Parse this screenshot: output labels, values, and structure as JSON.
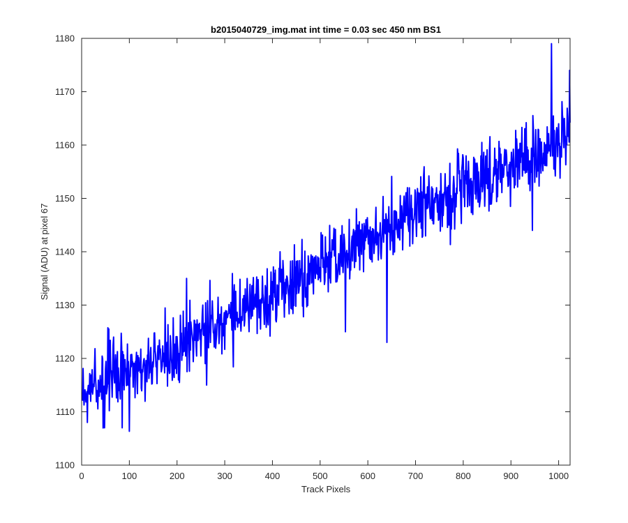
{
  "chart_data": {
    "type": "line",
    "title": "b2015040729_img.mat int time = 0.03 sec  450 nm BS1",
    "xlabel": "Track Pixels",
    "ylabel": "Signal (ADU) at pixel 67",
    "xlim": [
      0,
      1024
    ],
    "ylim": [
      1100,
      1180
    ],
    "xticks": [
      0,
      100,
      200,
      300,
      400,
      500,
      600,
      700,
      800,
      900,
      1000
    ],
    "yticks": [
      1100,
      1110,
      1120,
      1130,
      1140,
      1150,
      1160,
      1170,
      1180
    ],
    "grid": false,
    "series": [
      {
        "color": "#0000ff",
        "x_start": 1,
        "x_step": 1,
        "trend": [
          [
            0,
            1114.5
          ],
          [
            100,
            1117.5
          ],
          [
            200,
            1121.5
          ],
          [
            300,
            1127
          ],
          [
            400,
            1132
          ],
          [
            500,
            1137
          ],
          [
            600,
            1142.5
          ],
          [
            700,
            1147
          ],
          [
            800,
            1152
          ],
          [
            900,
            1156.5
          ],
          [
            1024,
            1161
          ]
        ],
        "noise_std": 3.2,
        "num_points": 1024,
        "notable_values": [
          [
            12,
            1108
          ],
          [
            48,
            1107
          ],
          [
            85,
            1107
          ],
          [
            220,
            1135
          ],
          [
            262,
            1115
          ],
          [
            553,
            1125
          ],
          [
            640,
            1123
          ],
          [
            945,
            1144
          ],
          [
            985,
            1179
          ],
          [
            1023,
            1174
          ]
        ]
      }
    ]
  }
}
